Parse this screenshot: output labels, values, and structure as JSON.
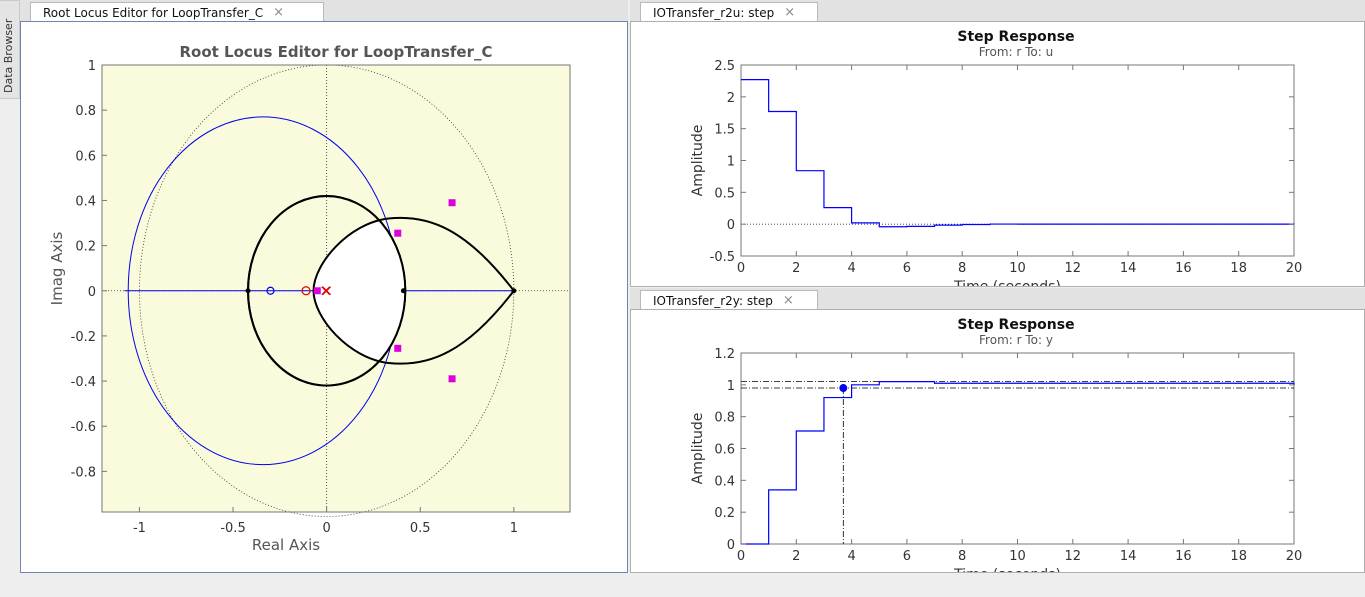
{
  "side_panel": {
    "label": "Data Browser"
  },
  "left_tab": {
    "label": "Root Locus Editor for LoopTransfer_C"
  },
  "top_right_tab": {
    "label": "IOTransfer_r2u: step"
  },
  "bottom_right_tab": {
    "label": "IOTransfer_r2y: step"
  },
  "close_glyph": "×",
  "colors": {
    "axes_bg": "#fafadc",
    "locus_blue": "#0000ee",
    "pole_magenta": "#dd00dd",
    "zero_red": "#dd0000",
    "step_blue": "#0000ff"
  },
  "chart_data": [
    {
      "type": "scatter",
      "title": "Root Locus Editor for LoopTransfer_C",
      "xlabel": "Real Axis",
      "ylabel": "Imag Axis",
      "xlim": [
        -1.2,
        1.3
      ],
      "ylim": [
        -0.98,
        1.0
      ],
      "xticks": [
        -1,
        -0.5,
        0,
        0.5,
        1
      ],
      "xtick_labels": [
        "-1",
        "-0.5",
        "0",
        "0.5",
        "1"
      ],
      "yticks": [
        1,
        0.8,
        0.6,
        0.4,
        0.2,
        0,
        -0.2,
        -0.4,
        -0.6,
        -0.8
      ],
      "ytick_labels": [
        "1",
        "0.8",
        "0.6",
        "0.4",
        "0.2",
        "0",
        "-0.2",
        "-0.4",
        "-0.6",
        "-0.8"
      ],
      "closed_loop_poles": [
        [
          0.38,
          0.255
        ],
        [
          0.38,
          -0.255
        ],
        [
          0.67,
          0.39
        ],
        [
          0.67,
          -0.39
        ],
        [
          -0.05,
          0
        ]
      ],
      "open_loop_poles": [
        [
          0,
          0
        ],
        [
          -0.005,
          0
        ]
      ],
      "controller_zero": [
        -0.11,
        0
      ],
      "blue_zero": [
        -0.3,
        0
      ],
      "breakpoints": [
        [
          -0.42,
          0
        ],
        [
          0.41,
          0
        ],
        [
          1.0,
          0
        ]
      ],
      "grid": false
    },
    {
      "type": "line",
      "title": "Step Response",
      "subtitle": "From: r  To: u",
      "xlabel": "Time (seconds)",
      "ylabel": "Amplitude",
      "xlim": [
        0,
        20
      ],
      "ylim": [
        -0.5,
        2.5
      ],
      "xticks": [
        0,
        2,
        4,
        6,
        8,
        10,
        12,
        14,
        16,
        18,
        20
      ],
      "yticks": [
        2.5,
        2,
        1.5,
        1,
        0.5,
        0,
        -0.5
      ],
      "ytick_labels": [
        "2.5",
        "2",
        "1.5",
        "1",
        "0.5",
        "0",
        "-0.5"
      ],
      "x": [
        0,
        1,
        2,
        3,
        4,
        5,
        6,
        7,
        8,
        9,
        10,
        20
      ],
      "values": [
        2.27,
        1.77,
        0.84,
        0.26,
        0.02,
        -0.04,
        -0.035,
        -0.015,
        -0.005,
        0.002,
        0.001,
        0.0
      ]
    },
    {
      "type": "line",
      "title": "Step Response",
      "subtitle": "From: r  To: y",
      "xlabel": "Time (seconds)",
      "ylabel": "Amplitude",
      "xlim": [
        0,
        20
      ],
      "ylim": [
        0,
        1.2
      ],
      "xticks": [
        0,
        2,
        4,
        6,
        8,
        10,
        12,
        14,
        16,
        18,
        20
      ],
      "yticks": [
        1.2,
        1,
        0.8,
        0.6,
        0.4,
        0.2,
        0
      ],
      "ytick_labels": [
        "1.2",
        "1",
        "0.8",
        "0.6",
        "0.4",
        "0.2",
        "0"
      ],
      "x": [
        0,
        1,
        2,
        3,
        4,
        5,
        6,
        7,
        20
      ],
      "values": [
        0.0,
        0.34,
        0.71,
        0.92,
        1.0,
        1.02,
        1.02,
        1.01,
        1.0
      ],
      "settling_band": [
        0.98,
        1.02
      ],
      "settling_time": 3.7
    }
  ]
}
